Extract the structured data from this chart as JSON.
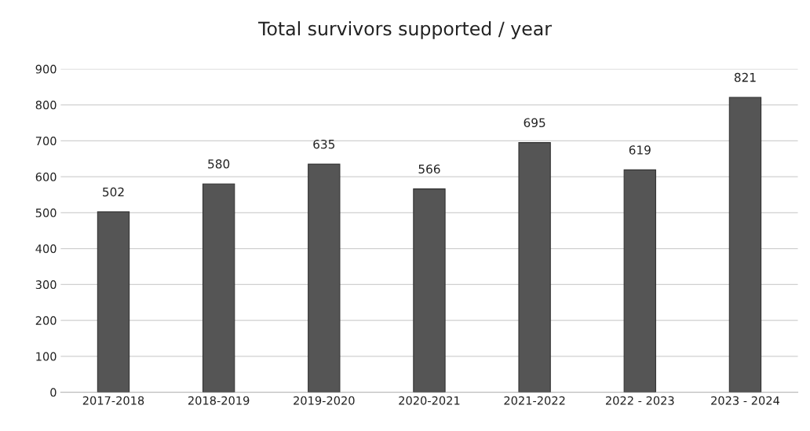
{
  "chart_data": {
    "type": "bar",
    "title": "Total survivors supported / year",
    "categories": [
      "2017-2018",
      "2018-2019",
      "2019-2020",
      "2020-2021",
      "2021-2022",
      "2022 - 2023",
      "2023 - 2024"
    ],
    "values": [
      502,
      580,
      635,
      566,
      695,
      619,
      821
    ],
    "color": "#555555",
    "ylim": [
      0,
      900
    ],
    "yticks": [
      0,
      100,
      200,
      300,
      400,
      500,
      600,
      700,
      800,
      900
    ],
    "grid": "y",
    "data_labels": true
  }
}
